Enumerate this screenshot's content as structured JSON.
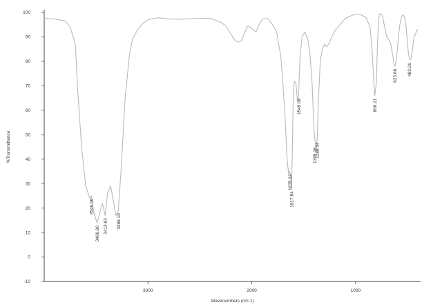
{
  "chart_data": {
    "type": "line",
    "title": "",
    "xlabel": "Wavenumbers (cm-1)",
    "ylabel": "%Transmittance",
    "xlim": [
      4000,
      400
    ],
    "ylim": [
      -10,
      100
    ],
    "x_reversed": true,
    "grid": false,
    "x_ticks": [
      {
        "value": 3000,
        "label": "3000"
      },
      {
        "value": 2000,
        "label": "2000"
      },
      {
        "value": 1000,
        "label": "1000"
      }
    ],
    "y_ticks": [
      {
        "value": 100,
        "label": "100"
      },
      {
        "value": 90,
        "label": "90"
      },
      {
        "value": 80,
        "label": "80"
      },
      {
        "value": 70,
        "label": "70"
      },
      {
        "value": 60,
        "label": "60"
      },
      {
        "value": 50,
        "label": "50"
      },
      {
        "value": 40,
        "label": "40"
      },
      {
        "value": 30,
        "label": "30"
      },
      {
        "value": 20,
        "label": "20"
      },
      {
        "value": 10,
        "label": "10"
      },
      {
        "value": 0,
        "label": "0"
      },
      {
        "value": -10,
        "label": "-10"
      }
    ],
    "series": [
      {
        "color": "#b9b9b9",
        "x": [
          4000,
          3900,
          3800,
          3750,
          3700,
          3680,
          3640,
          3600,
          3560,
          3546,
          3520,
          3490,
          3470,
          3440,
          3413,
          3390,
          3360,
          3330,
          3310,
          3286,
          3260,
          3220,
          3180,
          3150,
          3100,
          3050,
          3000,
          2950,
          2900,
          2850,
          2800,
          2700,
          2600,
          2500,
          2400,
          2300,
          2250,
          2200,
          2160,
          2130,
          2100,
          2070,
          2040,
          2000,
          1960,
          1930,
          1900,
          1870,
          1840,
          1800,
          1760,
          1720,
          1700,
          1680,
          1660,
          1645,
          1635,
          1625,
          1617,
          1610,
          1600,
          1590,
          1575,
          1560,
          1549,
          1535,
          1515,
          1490,
          1460,
          1440,
          1420,
          1400,
          1390,
          1380,
          1370,
          1360,
          1340,
          1320,
          1300,
          1280,
          1260,
          1230,
          1200,
          1150,
          1100,
          1050,
          1000,
          950,
          900,
          860,
          840,
          825,
          815,
          800,
          790,
          780,
          770,
          755,
          740,
          720,
          700,
          680,
          660,
          640,
          630,
          623,
          615,
          605,
          595,
          585,
          575,
          565,
          555,
          545,
          535,
          525,
          515,
          505,
          495,
          485,
          475,
          465,
          455,
          445,
          435,
          425,
          415,
          405,
          400
        ],
        "y": [
          97.5,
          97.3,
          96.5,
          94,
          87,
          70,
          45,
          29,
          24,
          25,
          18,
          14,
          17,
          22,
          17,
          26,
          29,
          22,
          17,
          19,
          35,
          65,
          82,
          89,
          93,
          95.5,
          97,
          97.5,
          97.8,
          97.6,
          97.3,
          97.2,
          97.4,
          97.6,
          97.6,
          96,
          94.5,
          91,
          88.5,
          87.8,
          88.5,
          91.5,
          94.5,
          93.5,
          92,
          95,
          97.2,
          97.5,
          97.3,
          95,
          92,
          82,
          71,
          58,
          40,
          34,
          35,
          33,
          28,
          43,
          67,
          72,
          71,
          64,
          66,
          82,
          90,
          92,
          89,
          83,
          72,
          52,
          47,
          44,
          48,
          62,
          80,
          85,
          87,
          86,
          87,
          90,
          92.5,
          95,
          97.5,
          98.5,
          99.3,
          99,
          98,
          94,
          84,
          72,
          66,
          71,
          86,
          96,
          99.3,
          99.5,
          98.5,
          94,
          90,
          89,
          87,
          82,
          79,
          78,
          79,
          82,
          86,
          91,
          94.5,
          97,
          98.5,
          99,
          98.5,
          97.5,
          95,
          90,
          85,
          82,
          80.5,
          81,
          84,
          87,
          90,
          91,
          92,
          93,
          93
        ]
      }
    ],
    "annotations": [
      {
        "text": "3546.06",
        "x": 3546,
        "y": 25
      },
      {
        "text": "3496.90",
        "x": 3490,
        "y": 14
      },
      {
        "text": "3413.83",
        "x": 3413,
        "y": 17
      },
      {
        "text": "3286.10",
        "x": 3286,
        "y": 19
      },
      {
        "text": "1635.12",
        "x": 1635,
        "y": 35
      },
      {
        "text": "1617.84",
        "x": 1617,
        "y": 28
      },
      {
        "text": "1549.08",
        "x": 1549,
        "y": 66
      },
      {
        "text": "1395.16",
        "x": 1395,
        "y": 46
      },
      {
        "text": "1288.34",
        "x": 1370,
        "y": 48
      },
      {
        "text": "800.21",
        "x": 815,
        "y": 66
      },
      {
        "text": "623.68",
        "x": 623,
        "y": 78
      },
      {
        "text": "483.26",
        "x": 483,
        "y": 80.5
      }
    ]
  }
}
